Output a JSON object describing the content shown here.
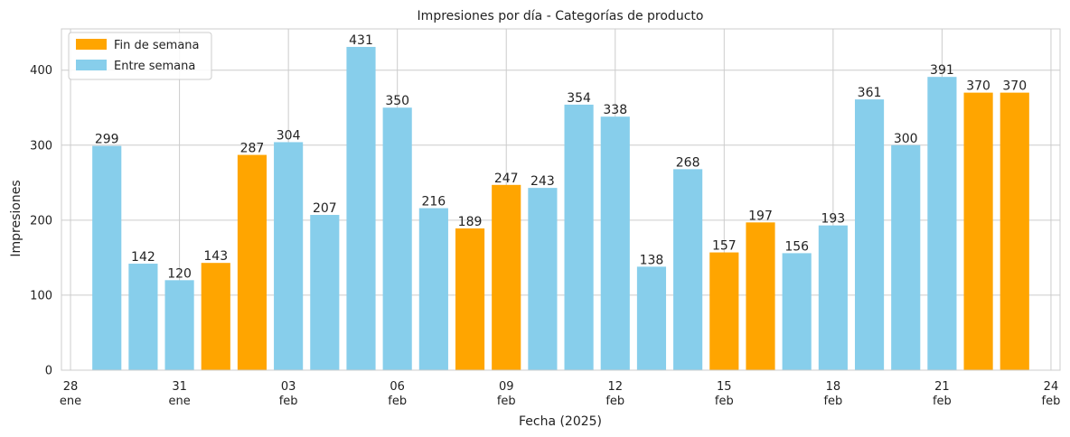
{
  "chart_data": {
    "type": "bar",
    "title": "Impresiones por día - Categorías de producto",
    "xlabel": "Fecha (2025)",
    "ylabel": "Impresiones",
    "ylim": [
      0,
      455
    ],
    "xlim": [
      "2025-01-27T18:00",
      "2025-02-24T06:00"
    ],
    "grid": true,
    "legend_position": "top-left",
    "colors": {
      "weekend": "#FFA500",
      "weekday": "#87CEEB"
    },
    "legend": [
      {
        "label": "Fin de semana",
        "key": "weekend"
      },
      {
        "label": "Entre semana",
        "key": "weekday"
      }
    ],
    "y_ticks": [
      "0",
      "100",
      "200",
      "300",
      "400"
    ],
    "x_ticks": [
      {
        "date": "2025-01-28",
        "day": "28",
        "month": "ene"
      },
      {
        "date": "2025-01-31",
        "day": "31",
        "month": "ene"
      },
      {
        "date": "2025-02-03",
        "day": "03",
        "month": "feb"
      },
      {
        "date": "2025-02-06",
        "day": "06",
        "month": "feb"
      },
      {
        "date": "2025-02-09",
        "day": "09",
        "month": "feb"
      },
      {
        "date": "2025-02-12",
        "day": "12",
        "month": "feb"
      },
      {
        "date": "2025-02-15",
        "day": "15",
        "month": "feb"
      },
      {
        "date": "2025-02-18",
        "day": "18",
        "month": "feb"
      },
      {
        "date": "2025-02-21",
        "day": "21",
        "month": "feb"
      },
      {
        "date": "2025-02-24",
        "day": "24",
        "month": "feb"
      }
    ],
    "bars": [
      {
        "date": "2025-01-29",
        "value": 299,
        "label": "299",
        "category": "weekday"
      },
      {
        "date": "2025-01-30",
        "value": 142,
        "label": "142",
        "category": "weekday"
      },
      {
        "date": "2025-01-31",
        "value": 120,
        "label": "120",
        "category": "weekday"
      },
      {
        "date": "2025-02-01",
        "value": 143,
        "label": "143",
        "category": "weekend"
      },
      {
        "date": "2025-02-02",
        "value": 287,
        "label": "287",
        "category": "weekend"
      },
      {
        "date": "2025-02-03",
        "value": 304,
        "label": "304",
        "category": "weekday"
      },
      {
        "date": "2025-02-04",
        "value": 207,
        "label": "207",
        "category": "weekday"
      },
      {
        "date": "2025-02-05",
        "value": 431,
        "label": "431",
        "category": "weekday"
      },
      {
        "date": "2025-02-06",
        "value": 350,
        "label": "350",
        "category": "weekday"
      },
      {
        "date": "2025-02-07",
        "value": 216,
        "label": "216",
        "category": "weekday"
      },
      {
        "date": "2025-02-08",
        "value": 189,
        "label": "189",
        "category": "weekend"
      },
      {
        "date": "2025-02-09",
        "value": 247,
        "label": "247",
        "category": "weekend"
      },
      {
        "date": "2025-02-10",
        "value": 243,
        "label": "243",
        "category": "weekday"
      },
      {
        "date": "2025-02-11",
        "value": 354,
        "label": "354",
        "category": "weekday"
      },
      {
        "date": "2025-02-12",
        "value": 338,
        "label": "338",
        "category": "weekday"
      },
      {
        "date": "2025-02-13",
        "value": 138,
        "label": "138",
        "category": "weekday"
      },
      {
        "date": "2025-02-14",
        "value": 268,
        "label": "268",
        "category": "weekday"
      },
      {
        "date": "2025-02-15",
        "value": 157,
        "label": "157",
        "category": "weekend"
      },
      {
        "date": "2025-02-16",
        "value": 197,
        "label": "197",
        "category": "weekend"
      },
      {
        "date": "2025-02-17",
        "value": 156,
        "label": "156",
        "category": "weekday"
      },
      {
        "date": "2025-02-18",
        "value": 193,
        "label": "193",
        "category": "weekday"
      },
      {
        "date": "2025-02-19",
        "value": 361,
        "label": "361",
        "category": "weekday"
      },
      {
        "date": "2025-02-20",
        "value": 300,
        "label": "300",
        "category": "weekday"
      },
      {
        "date": "2025-02-21",
        "value": 391,
        "label": "391",
        "category": "weekday"
      },
      {
        "date": "2025-02-22",
        "value": 370,
        "label": "370",
        "category": "weekend"
      },
      {
        "date": "2025-02-23",
        "value": 370,
        "label": "370",
        "category": "weekend"
      }
    ]
  }
}
